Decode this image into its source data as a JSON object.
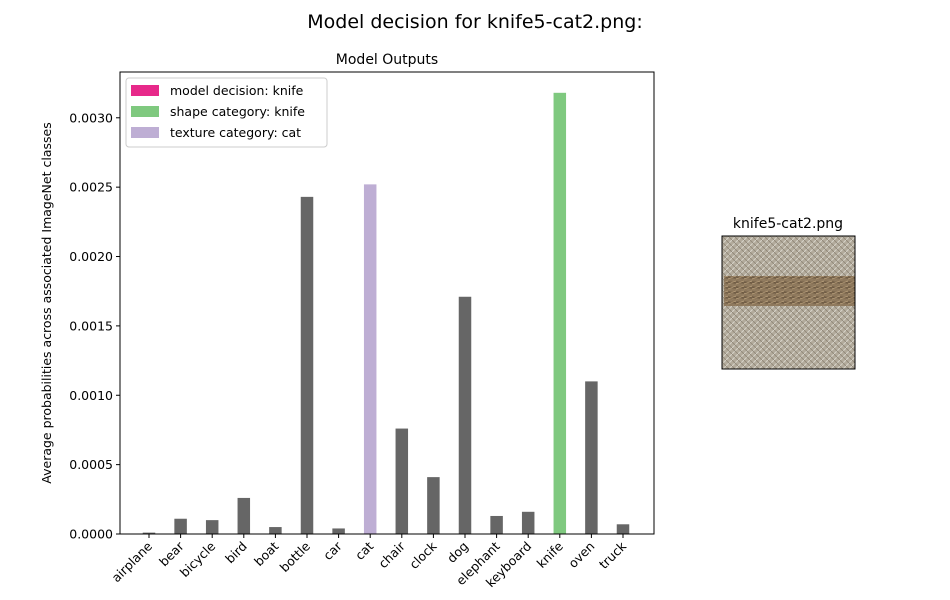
{
  "figure": {
    "suptitle": "Model decision for knife5-cat2.png:"
  },
  "chart_data": {
    "type": "bar",
    "title": "Model Outputs",
    "xlabel": "",
    "ylabel": "Average probabilities across associated ImageNet classes",
    "ylim": [
      0,
      0.00333
    ],
    "yticks": [
      "0.0000",
      "0.0005",
      "0.0010",
      "0.0015",
      "0.0020",
      "0.0025",
      "0.0030"
    ],
    "ytick_values": [
      0,
      0.0005,
      0.001,
      0.0015,
      0.002,
      0.0025,
      0.003
    ],
    "grid": false,
    "legend_position": "top-left",
    "categories": [
      "airplane",
      "bear",
      "bicycle",
      "bird",
      "boat",
      "bottle",
      "car",
      "cat",
      "chair",
      "clock",
      "dog",
      "elephant",
      "keyboard",
      "knife",
      "oven",
      "truck"
    ],
    "values": [
      1e-05,
      0.00011,
      0.0001,
      0.00026,
      5e-05,
      0.00243,
      4e-05,
      0.00252,
      0.00076,
      0.00041,
      0.00171,
      0.00013,
      0.00016,
      0.00318,
      0.0011,
      7e-05
    ],
    "highlights": {
      "shape": "knife",
      "texture": "cat",
      "decision": "knife"
    },
    "colors": {
      "default": "#666666",
      "decision": "#e7298a",
      "shape": "#7fc97f",
      "texture": "#beaed4"
    },
    "legend": [
      {
        "label": "model decision: knife",
        "color": "#e7298a"
      },
      {
        "label": "shape category: knife",
        "color": "#7fc97f"
      },
      {
        "label": "texture category: cat",
        "color": "#beaed4"
      }
    ]
  },
  "thumbnail": {
    "title": "knife5-cat2.png"
  }
}
